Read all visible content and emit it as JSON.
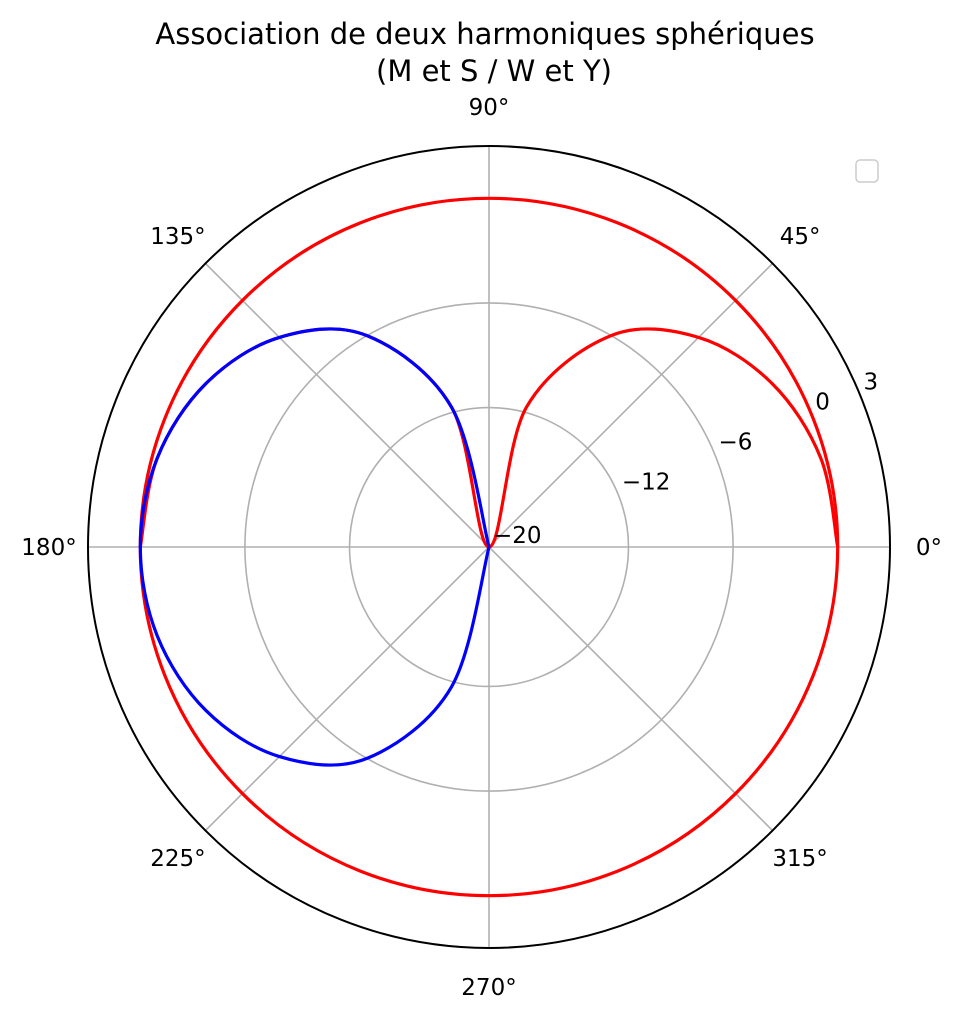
{
  "chart_data": {
    "type": "polar-line",
    "title": "Association de deux harmoniques sphériques",
    "subtitle": "(M et S / W et Y)",
    "theta_ticks_deg": [
      0,
      45,
      90,
      135,
      180,
      225,
      270,
      315
    ],
    "theta_tick_labels": [
      "0°",
      "45°",
      "90°",
      "135°",
      "180°",
      "225°",
      "270°",
      "315°"
    ],
    "r_ticks": [
      -20,
      -12,
      -6,
      0,
      3
    ],
    "r_tick_labels": [
      "−20",
      "−12",
      "−6",
      "0",
      "3"
    ],
    "r_range": [
      -20,
      3
    ],
    "grid": true,
    "legend": {
      "position": "top-right",
      "entries": []
    },
    "series": [
      {
        "color": "#ff0000",
        "points": [
          {
            "theta": 0,
            "r": 0
          },
          {
            "theta": 15,
            "r": -0.3
          },
          {
            "theta": 30,
            "r": -1.25
          },
          {
            "theta": 45,
            "r": -3.0
          },
          {
            "theta": 60,
            "r": -6.0
          },
          {
            "theta": 75,
            "r": -11.7
          },
          {
            "theta": 90,
            "r": -20
          },
          {
            "theta": 105,
            "r": -11.7
          },
          {
            "theta": 120,
            "r": -6.0
          },
          {
            "theta": 135,
            "r": -3.0
          },
          {
            "theta": 150,
            "r": -1.25
          },
          {
            "theta": 165,
            "r": -0.3
          },
          {
            "theta": 180,
            "r": 0
          }
        ]
      },
      {
        "color": "#ff0000",
        "points": [
          {
            "theta": 0,
            "r": 0
          },
          {
            "theta": 90,
            "r": 0
          },
          {
            "theta": 180,
            "r": 0
          },
          {
            "theta": 270,
            "r": 0
          },
          {
            "theta": 360,
            "r": 0
          }
        ]
      },
      {
        "color": "#0000ff",
        "points": [
          {
            "theta": 90,
            "r": -20
          },
          {
            "theta": 105,
            "r": -11.7
          },
          {
            "theta": 120,
            "r": -6.0
          },
          {
            "theta": 135,
            "r": -3.0
          },
          {
            "theta": 150,
            "r": -1.25
          },
          {
            "theta": 165,
            "r": -0.3
          },
          {
            "theta": 180,
            "r": 0
          },
          {
            "theta": 195,
            "r": -0.3
          },
          {
            "theta": 210,
            "r": -1.25
          },
          {
            "theta": 225,
            "r": -3.0
          },
          {
            "theta": 240,
            "r": -6.0
          },
          {
            "theta": 255,
            "r": -11.7
          },
          {
            "theta": 270,
            "r": -20
          }
        ]
      }
    ]
  }
}
